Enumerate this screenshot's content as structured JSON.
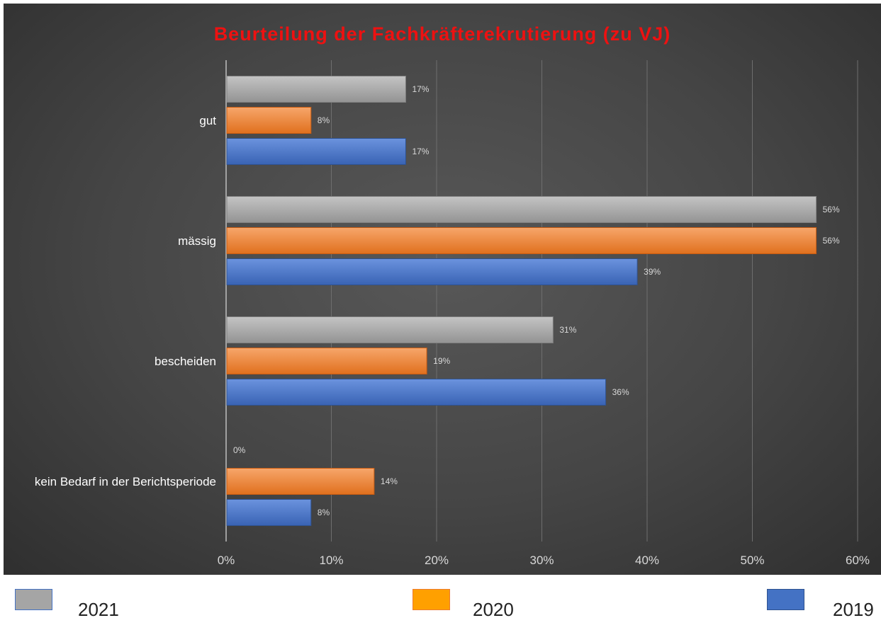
{
  "chart_data": {
    "type": "bar",
    "orientation": "horizontal",
    "title": "Beurteilung der Fachkräfterekrutierung (zu VJ)",
    "categories": [
      "gut",
      "mässig",
      "bescheiden",
      "kein Bedarf in der Berichtsperiode"
    ],
    "series": [
      {
        "name": "2021",
        "color": "#a5a5a5",
        "values": [
          17,
          56,
          31,
          0
        ],
        "labels": [
          "17%",
          "56%",
          "31%",
          "0%"
        ]
      },
      {
        "name": "2020",
        "color": "#ed7d31",
        "values": [
          8,
          56,
          19,
          14
        ],
        "labels": [
          "8%",
          "56%",
          "19%",
          "14%"
        ]
      },
      {
        "name": "2019",
        "color": "#4472c4",
        "values": [
          17,
          39,
          36,
          8
        ],
        "labels": [
          "17%",
          "39%",
          "36%",
          "8%"
        ]
      }
    ],
    "xlim": [
      0,
      60
    ],
    "xticks": [
      0,
      10,
      20,
      30,
      40,
      50,
      60
    ],
    "xtick_labels": [
      "0%",
      "10%",
      "20%",
      "30%",
      "40%",
      "50%",
      "60%"
    ],
    "grid": true,
    "legend_position": "bottom"
  },
  "legend": {
    "items": [
      {
        "label": "2021",
        "fill": "#a5a5a5",
        "border": "#4472c4"
      },
      {
        "label": "2020",
        "fill": "#ffa000",
        "border": "#ed7d31"
      },
      {
        "label": "2019",
        "fill": "#4472c4",
        "border": "#2f528f"
      }
    ]
  }
}
